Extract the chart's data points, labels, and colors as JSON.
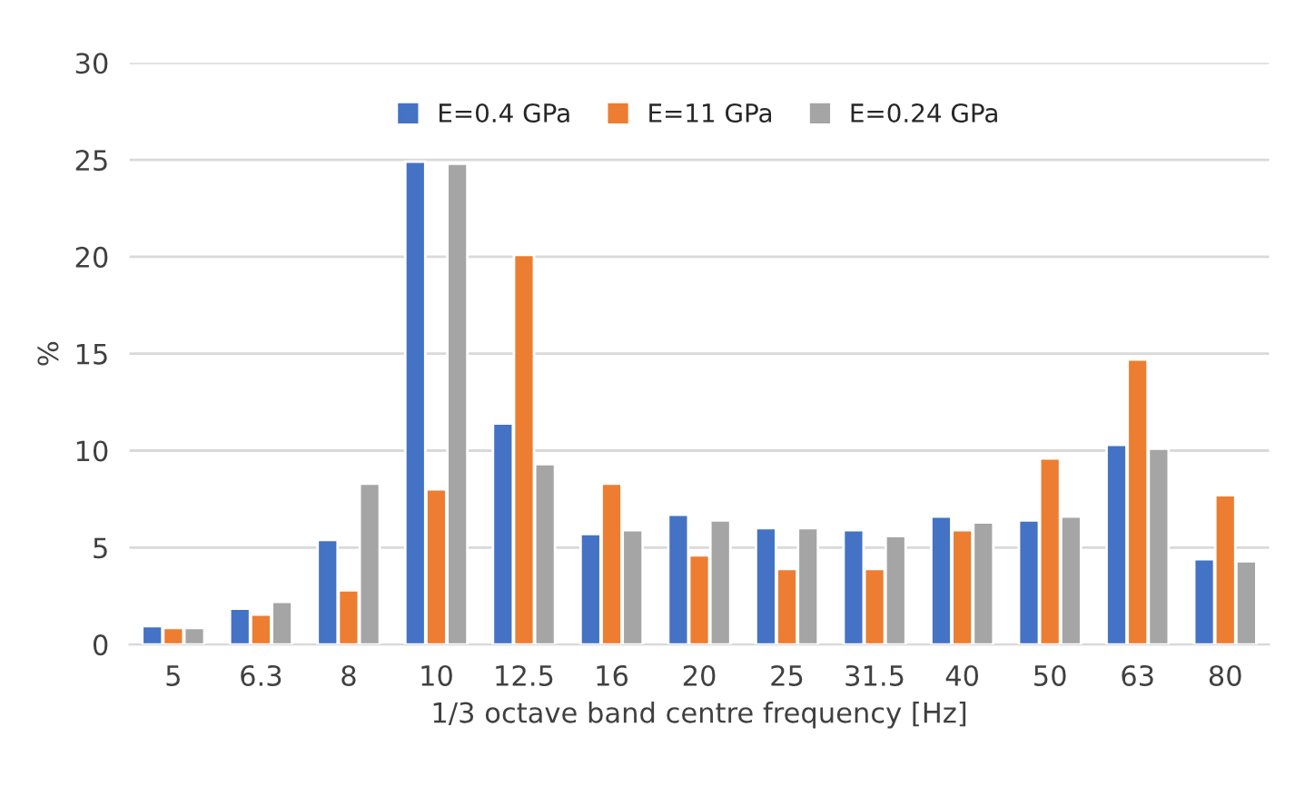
{
  "chart_data": {
    "type": "bar",
    "xlabel": "1/3 octave band centre frequency [Hz]",
    "ylabel": "%",
    "categories": [
      "5",
      "6.3",
      "8",
      "10",
      "12.5",
      "16",
      "20",
      "25",
      "31.5",
      "40",
      "50",
      "63",
      "80"
    ],
    "series": [
      {
        "name": "E=0.4 GPa",
        "color": "#4472c4",
        "values": [
          0.95,
          1.85,
          5.4,
          24.9,
          11.4,
          5.7,
          6.7,
          6.0,
          5.9,
          6.6,
          6.4,
          10.3,
          4.4
        ]
      },
      {
        "name": "E=11 GPa",
        "color": "#ed7d31",
        "values": [
          0.85,
          1.55,
          2.8,
          8.0,
          20.1,
          8.3,
          4.6,
          3.9,
          3.9,
          5.9,
          9.6,
          14.7,
          7.7
        ]
      },
      {
        "name": "E=0.24 GPa",
        "color": "#a5a5a5",
        "values": [
          0.85,
          2.2,
          8.3,
          24.8,
          9.3,
          5.9,
          6.4,
          6.0,
          5.6,
          6.3,
          6.6,
          10.1,
          4.3
        ]
      }
    ],
    "ylim": [
      0,
      30
    ],
    "yticks": [
      0,
      5,
      10,
      15,
      20,
      25,
      30
    ],
    "grid": "y",
    "legend": "top"
  }
}
